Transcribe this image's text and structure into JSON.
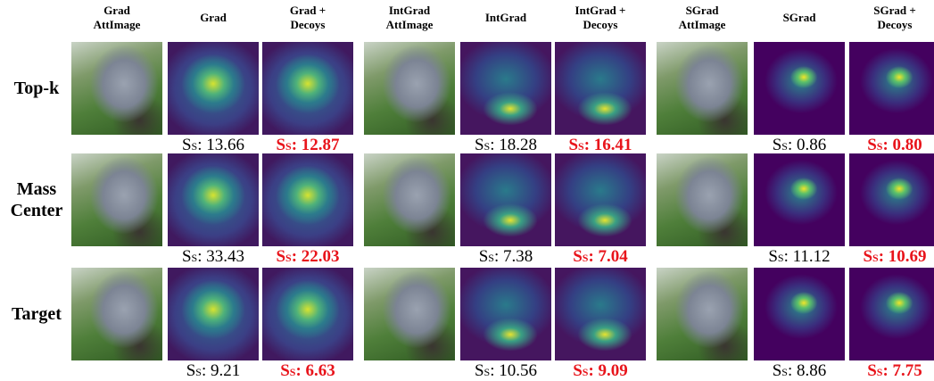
{
  "figure": {
    "columns": [
      {
        "lines": [
          "Grad",
          "AttImage"
        ]
      },
      {
        "lines": [
          "Grad"
        ]
      },
      {
        "lines": [
          "Grad +",
          "Decoys"
        ]
      },
      {
        "lines": [
          "IntGrad",
          "AttImage"
        ]
      },
      {
        "lines": [
          "IntGrad"
        ]
      },
      {
        "lines": [
          "IntGrad +",
          "Decoys"
        ]
      },
      {
        "lines": [
          "SGrad",
          "AttImage"
        ]
      },
      {
        "lines": [
          "SGrad"
        ]
      },
      {
        "lines": [
          "SGrad +",
          "Decoys"
        ]
      }
    ],
    "score_symbol": "S",
    "score_subscript": "S",
    "score_separator": ":",
    "rows": [
      {
        "lines": [
          "Top-k"
        ],
        "scores": [
          {
            "value": "13.66",
            "highlight": false
          },
          {
            "value": "12.87",
            "highlight": true
          },
          {
            "value": "18.28",
            "highlight": false
          },
          {
            "value": "16.41",
            "highlight": true
          },
          {
            "value": "0.86",
            "highlight": false
          },
          {
            "value": "0.80",
            "highlight": true
          }
        ]
      },
      {
        "lines": [
          "Mass",
          "Center"
        ],
        "scores": [
          {
            "value": "33.43",
            "highlight": false
          },
          {
            "value": "22.03",
            "highlight": true
          },
          {
            "value": "7.38",
            "highlight": false
          },
          {
            "value": "7.04",
            "highlight": true
          },
          {
            "value": "11.12",
            "highlight": false
          },
          {
            "value": "10.69",
            "highlight": true
          }
        ]
      },
      {
        "lines": [
          "Target"
        ],
        "scores": [
          {
            "value": "9.21",
            "highlight": false
          },
          {
            "value": "6.63",
            "highlight": true
          },
          {
            "value": "10.56",
            "highlight": false
          },
          {
            "value": "9.09",
            "highlight": true
          },
          {
            "value": "8.86",
            "highlight": false
          },
          {
            "value": "7.75",
            "highlight": true
          }
        ]
      }
    ]
  }
}
